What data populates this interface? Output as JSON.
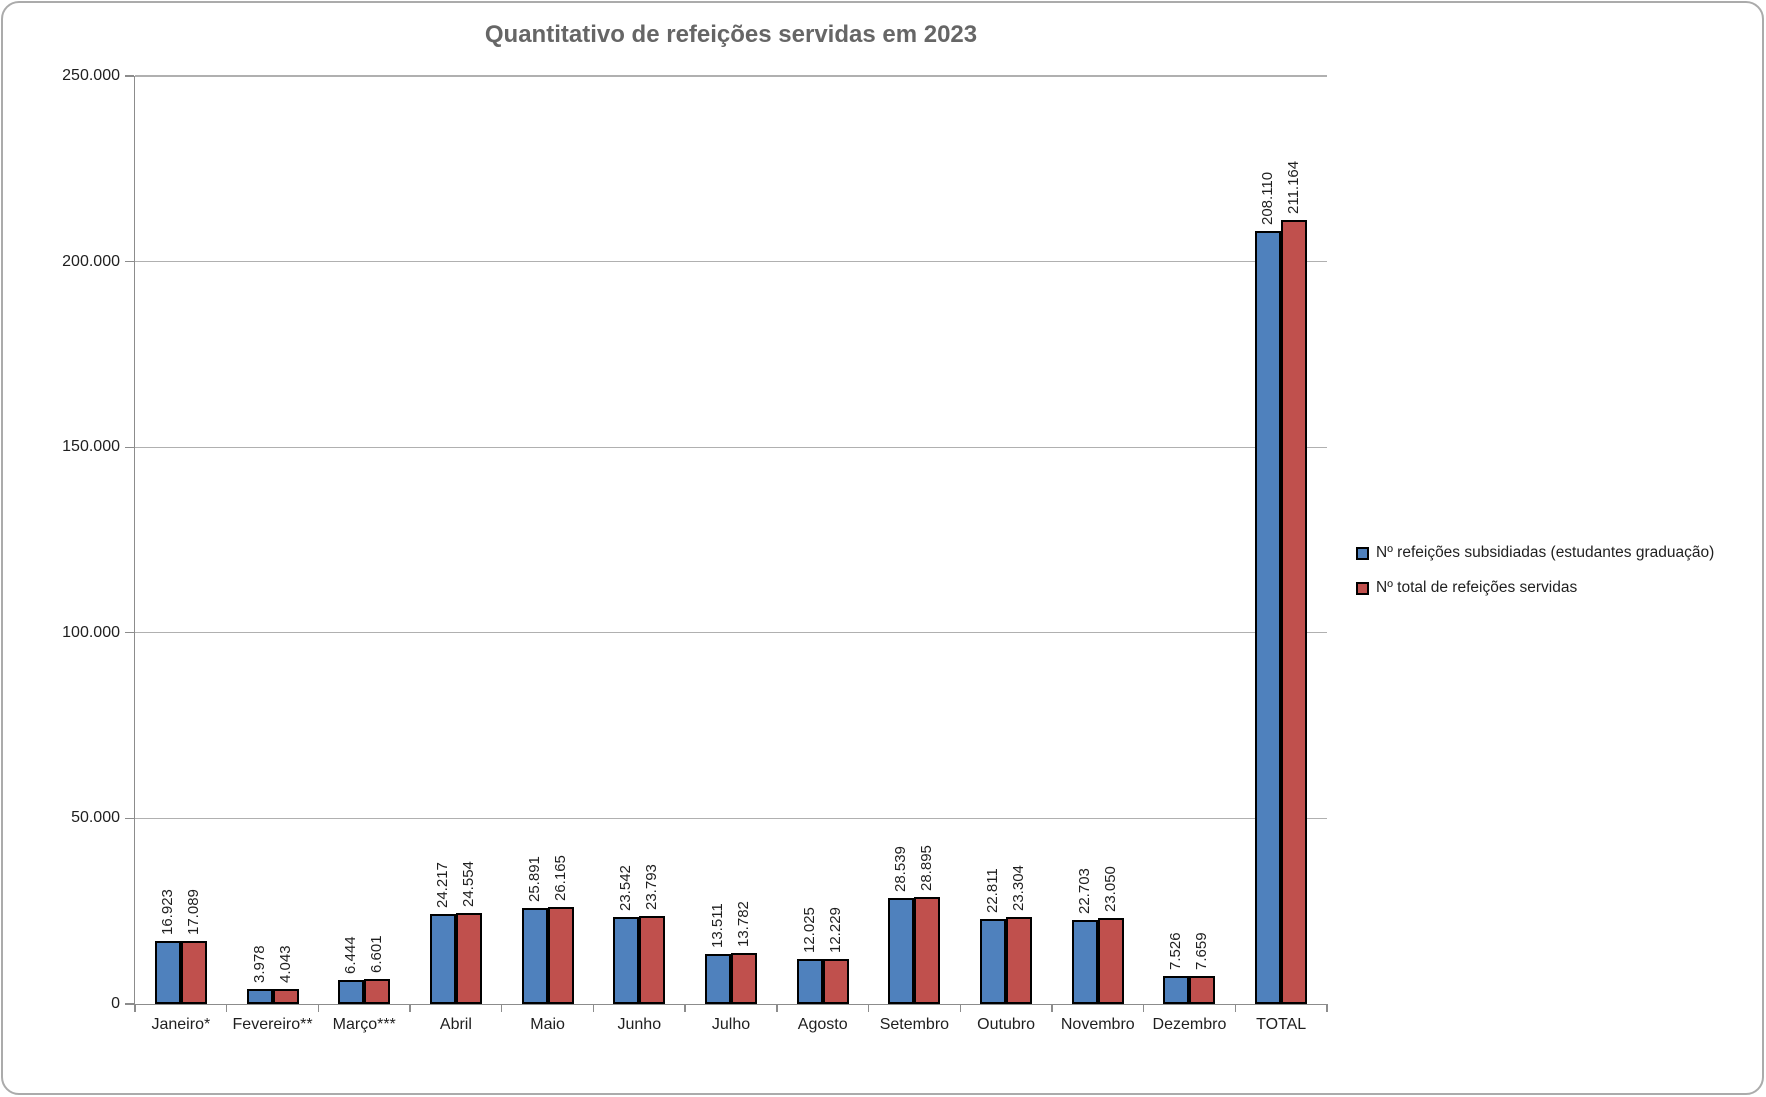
{
  "chart_data": {
    "type": "bar",
    "title": "Quantitativo de refeições servidas em 2023",
    "categories": [
      "Janeiro*",
      "Fevereiro**",
      "Março***",
      "Abril",
      "Maio",
      "Junho",
      "Julho",
      "Agosto",
      "Setembro",
      "Outubro",
      "Novembro",
      "Dezembro",
      "TOTAL"
    ],
    "series": [
      {
        "name": "Nº refeições subsidiadas (estudantes graduação)",
        "color": "#4F81BD",
        "values": [
          16923,
          3978,
          6444,
          24217,
          25891,
          23542,
          13511,
          12025,
          28539,
          22811,
          22703,
          7526,
          208110
        ],
        "labels": [
          "16.923",
          "3.978",
          "6.444",
          "24.217",
          "25.891",
          "23.542",
          "13.511",
          "12.025",
          "28.539",
          "22.811",
          "22.703",
          "7.526",
          "208.110"
        ]
      },
      {
        "name": "Nº total de refeições servidas",
        "color": "#C0504D",
        "values": [
          17089,
          4043,
          6601,
          24554,
          26165,
          23793,
          13782,
          12229,
          28895,
          23304,
          23050,
          7659,
          211164
        ],
        "labels": [
          "17.089",
          "4.043",
          "6.601",
          "24.554",
          "26.165",
          "23.793",
          "13.782",
          "12.229",
          "28.895",
          "23.304",
          "23.050",
          "7.659",
          "211.164"
        ]
      }
    ],
    "y_axis": {
      "min": 0,
      "max": 250000,
      "tick_step": 50000,
      "tick_labels": [
        "0",
        "50.000",
        "100.000",
        "150.000",
        "200.000",
        "250.000"
      ]
    },
    "xlabel": "",
    "ylabel": "",
    "grid": true,
    "legend_position": "right",
    "data_label_rotation": 270,
    "colors": {
      "bar_border": "#000000",
      "gridline": "#B0B0B0",
      "axis": "#8C8C8C",
      "title": "#666666",
      "frame_border": "#ABABAB",
      "text": "#1F1F1F"
    }
  }
}
